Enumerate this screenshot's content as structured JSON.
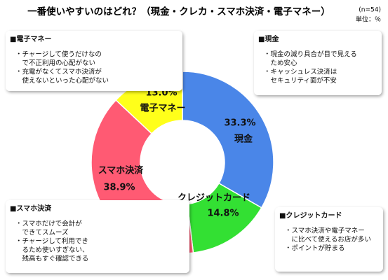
{
  "chart_data": {
    "type": "donut",
    "title": "一番使いやすいのはどれ？（現金・クレカ・スマホ決済・電子マネー）",
    "subtitle": "(n=54)",
    "unit_label": "単位：％",
    "categories": [
      "現金",
      "クレジットカード",
      "スマホ決済",
      "電子マネー"
    ],
    "values": [
      33.3,
      14.8,
      38.9,
      13.0
    ],
    "value_labels": [
      "33.3%",
      "14.8%",
      "38.9%",
      "13.0%"
    ],
    "colors": [
      "#4a86e8",
      "#33e033",
      "#ff5a73",
      "#ffff1a"
    ],
    "annotations": [
      {
        "title": "■現金",
        "lines": [
          "・現金の減り具合が目で見える",
          "　ため安心",
          "・キャッシュレス決済は",
          "　セキュリティ面が不安"
        ]
      },
      {
        "title": "■クレジットカード",
        "lines": [
          "・スマホ決済や電子マネー",
          "　に比べて使えるお店が多い",
          "・ポイントが貯まる"
        ]
      },
      {
        "title": "■スマホ決済",
        "lines": [
          "・スマホだけで会計が",
          "　できてスムーズ",
          "・チャージして利用でき",
          "　るため使いすぎない、",
          "　残高もすぐ確認できる"
        ]
      },
      {
        "title": "■電子マネー",
        "lines": [
          "・チャージして使うだけなの",
          "　で不正利用の心配がない",
          "・充電がなくてスマホ決済が",
          "　使えないといった心配がない"
        ]
      }
    ]
  }
}
